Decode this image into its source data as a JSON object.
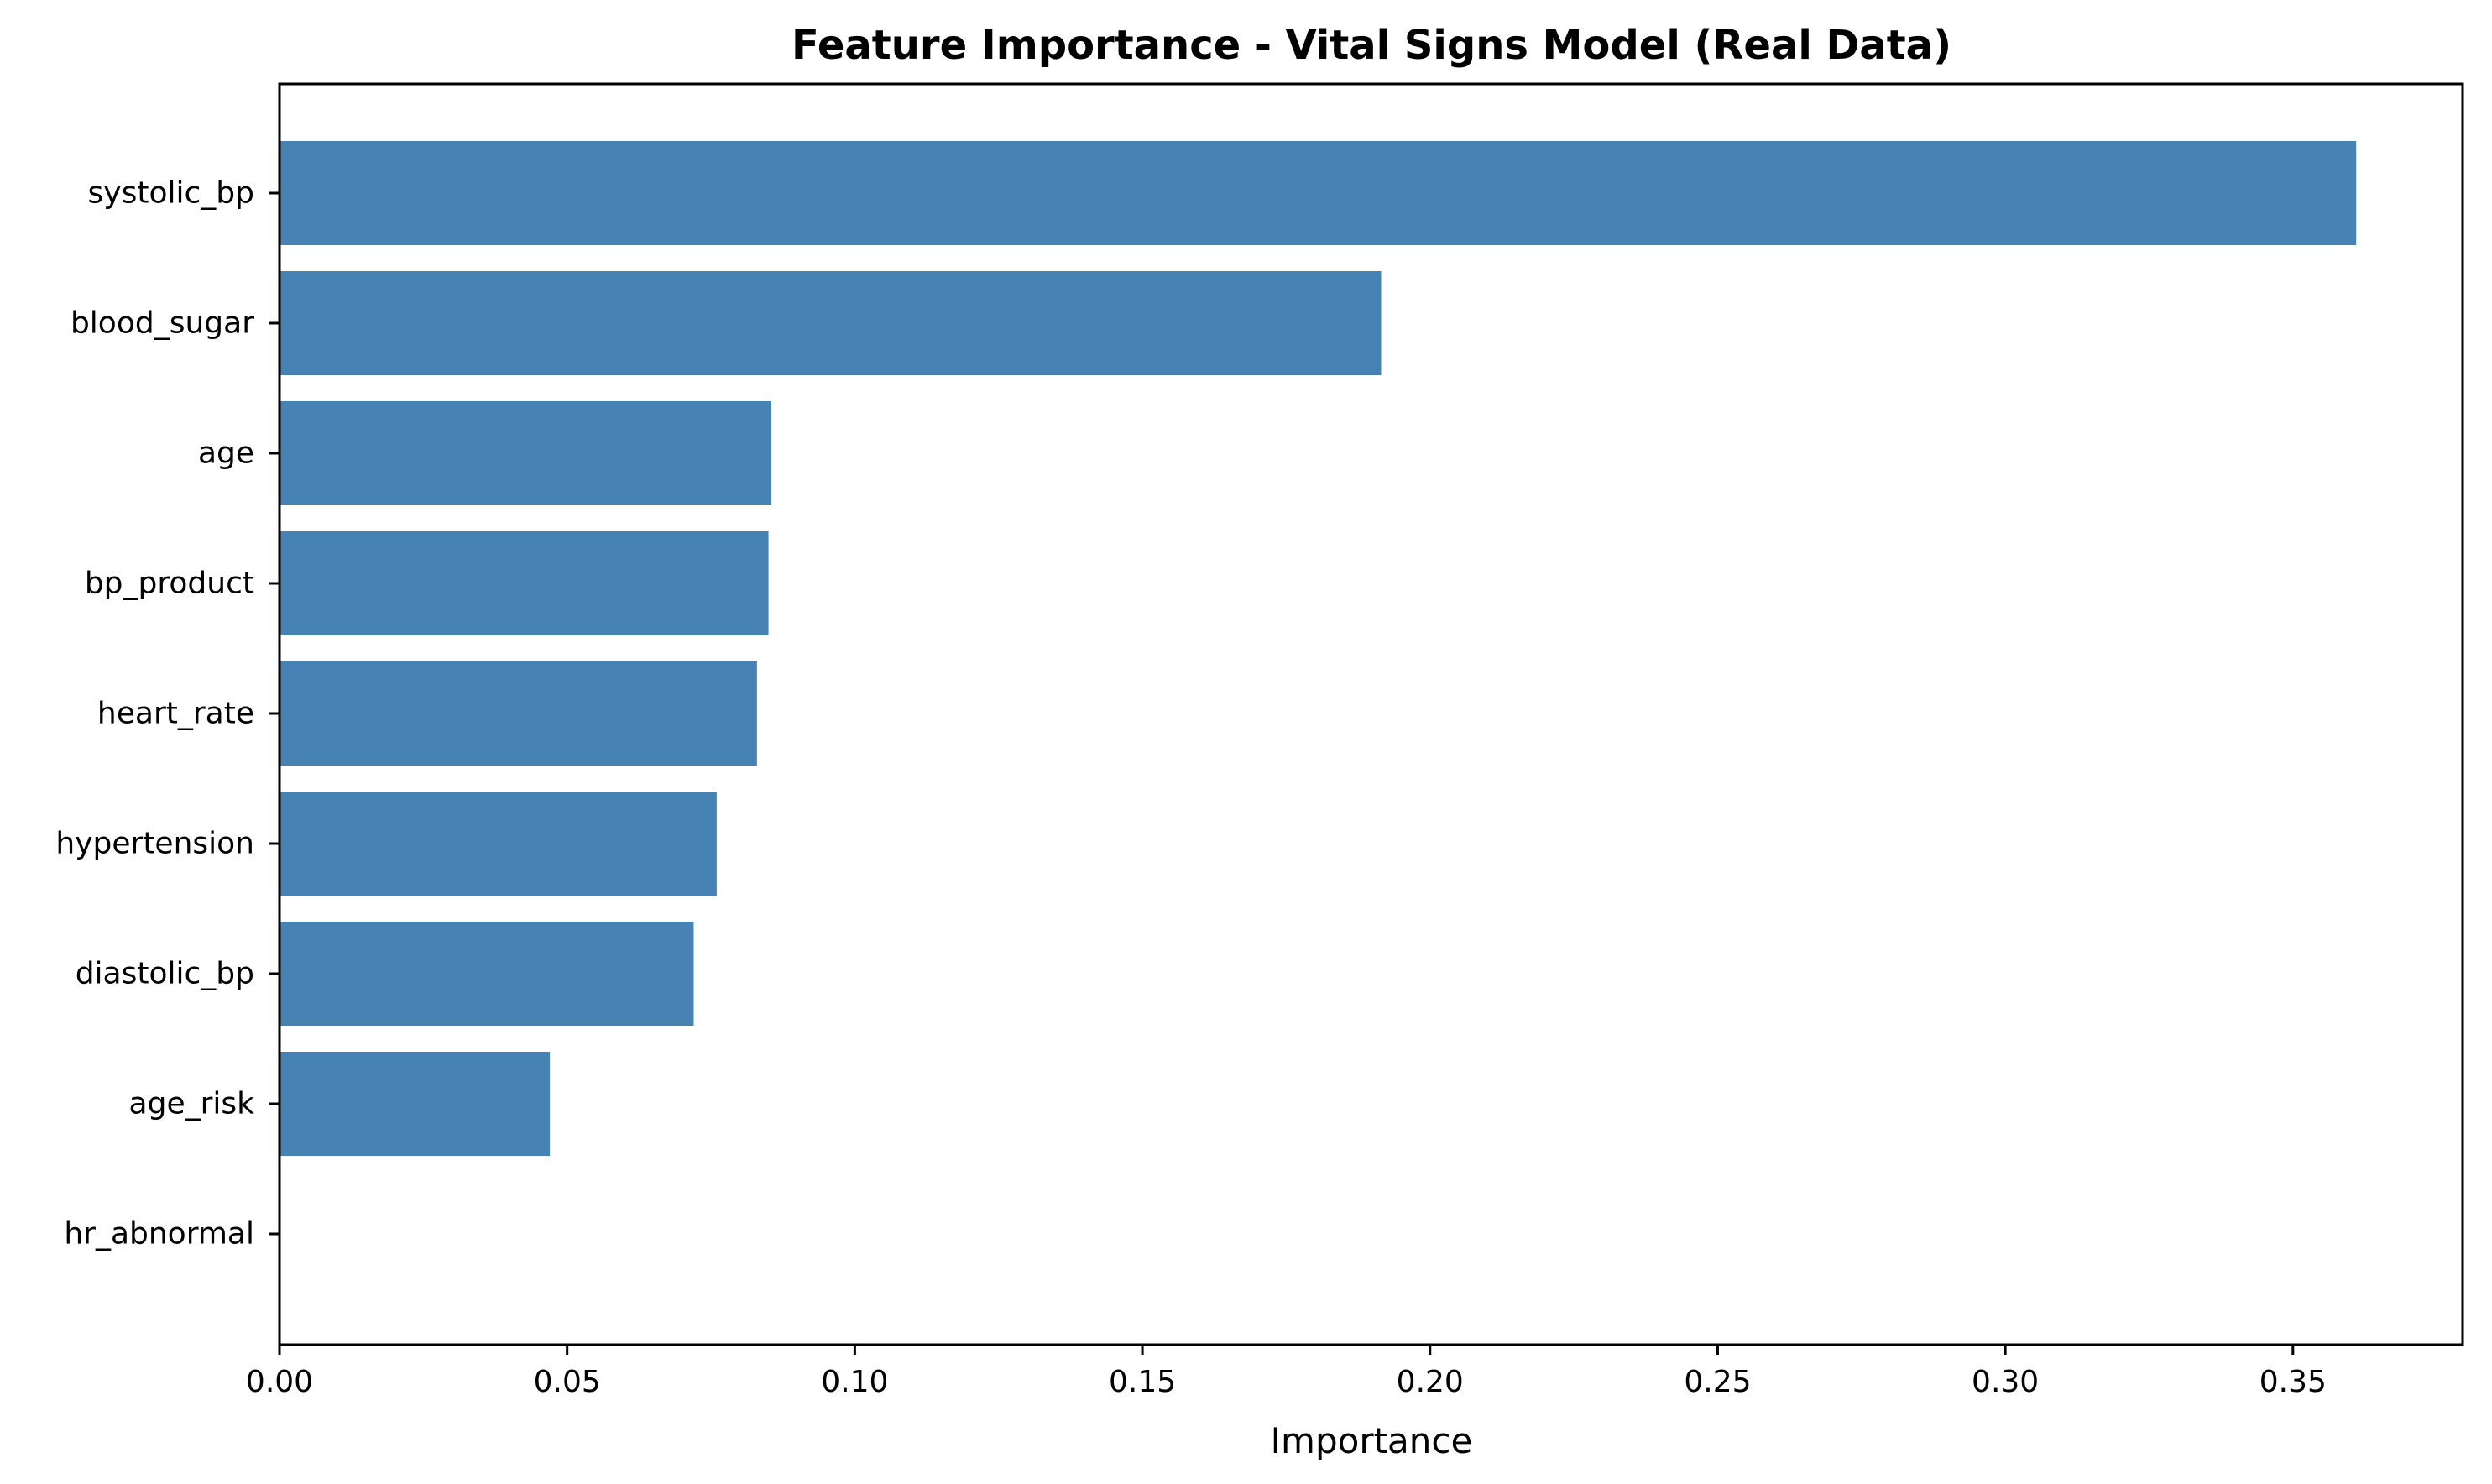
{
  "chart_data": {
    "type": "bar",
    "orientation": "horizontal",
    "title": "Feature Importance - Vital Signs Model (Real Data)",
    "xlabel": "Importance",
    "ylabel": "",
    "categories": [
      "systolic_bp",
      "blood_sugar",
      "age",
      "bp_product",
      "heart_rate",
      "hypertension",
      "diastolic_bp",
      "age_risk",
      "hr_abnormal"
    ],
    "values": [
      0.361,
      0.1915,
      0.0855,
      0.085,
      0.083,
      0.076,
      0.072,
      0.047,
      0.0
    ],
    "xlim": [
      0,
      0.3795
    ],
    "xticks": [
      0.0,
      0.05,
      0.1,
      0.15,
      0.2,
      0.25,
      0.3,
      0.35
    ],
    "xtick_labels": [
      "0.00",
      "0.05",
      "0.10",
      "0.15",
      "0.20",
      "0.25",
      "0.30",
      "0.35"
    ],
    "bar_color": "#4682b4",
    "grid": false,
    "legend": "none"
  }
}
